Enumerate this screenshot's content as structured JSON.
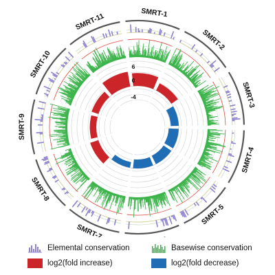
{
  "figure": {
    "segments": [
      {
        "label": "SMRT-1"
      },
      {
        "label": "SMRT-2"
      },
      {
        "label": "SMRT-3"
      },
      {
        "label": "SMRT-4"
      },
      {
        "label": "SMRT-5"
      },
      {
        "label": "SMRT-6"
      },
      {
        "label": "SMRT-7"
      },
      {
        "label": "SMRT-8"
      },
      {
        "label": "SMRT-9"
      },
      {
        "label": "SMRT-10"
      },
      {
        "label": "SMRT-11"
      }
    ],
    "scale_ticks": [
      "6",
      "0",
      "-4"
    ],
    "fold_change_log2": [
      3.6,
      2.2,
      -2.2,
      -2.8,
      -2.6,
      -2.5,
      -1.6,
      2.4,
      1.8,
      2.0,
      4.2
    ],
    "colors": {
      "basewise_conservation": "#3cb44b",
      "elemental_conservation": "#8f7fcf",
      "fold_increase": "#cc2529",
      "fold_decrease": "#1f6db5",
      "segment_outline": "#555555",
      "guide_line": "#e2453a"
    }
  },
  "legend": {
    "elemental": "Elemental conservation",
    "basewise": "Basewise conservation",
    "increase": "log2(fold increase)",
    "decrease": "log2(fold decrease)",
    "elemental_icon": "elemental-bars-icon",
    "basewise_icon": "basewise-bars-icon"
  }
}
